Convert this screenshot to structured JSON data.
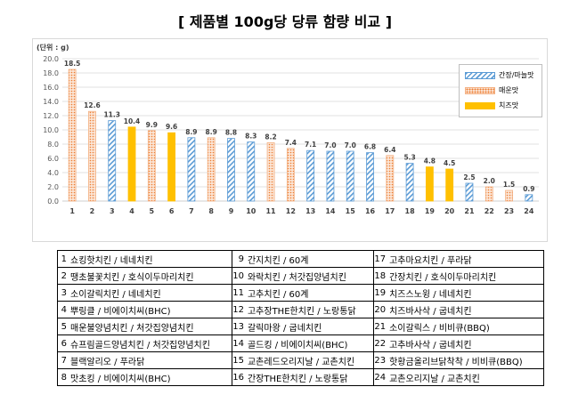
{
  "title": "[ 제품별 100g당 당류 함량 비교 ]",
  "chart_data": {
    "type": "bar",
    "unit_label": "(단위 : g)",
    "categories": [
      "1",
      "2",
      "3",
      "4",
      "5",
      "6",
      "7",
      "8",
      "9",
      "10",
      "11",
      "12",
      "13",
      "14",
      "15",
      "16",
      "17",
      "18",
      "19",
      "20",
      "21",
      "22",
      "23",
      "24"
    ],
    "values": [
      18.5,
      12.6,
      11.3,
      10.4,
      9.9,
      9.6,
      8.9,
      8.9,
      8.8,
      8.3,
      8.2,
      7.4,
      7.1,
      7.0,
      7.0,
      6.8,
      6.4,
      5.3,
      4.8,
      4.5,
      2.5,
      2.0,
      1.5,
      0.9
    ],
    "value_labels": [
      "18.5",
      "12.6",
      "11.3",
      "10.4",
      "9.9",
      "9.6",
      "8.9",
      "8.9",
      "8.8",
      "8.3",
      "8.2",
      "7.4",
      "7.1",
      "7.0",
      "7.0",
      "6.8",
      "6.4",
      "5.3",
      "4.8",
      "4.5",
      "2.5",
      "2.0",
      "1.5",
      "0.9"
    ],
    "groups": [
      "spicy",
      "spicy",
      "soy",
      "cheese",
      "spicy",
      "cheese",
      "soy",
      "spicy",
      "soy",
      "soy",
      "spicy",
      "spicy",
      "soy",
      "soy",
      "soy",
      "soy",
      "spicy",
      "soy",
      "cheese",
      "cheese",
      "soy",
      "spicy",
      "spicy",
      "soy"
    ],
    "ylim": [
      0,
      20
    ],
    "yticks": [
      "0.0",
      "2.0",
      "4.0",
      "6.0",
      "8.0",
      "10.0",
      "12.0",
      "14.0",
      "16.0",
      "18.0",
      "20.0"
    ],
    "grid": true,
    "legend_position": "top-right",
    "legend": [
      {
        "key": "soy",
        "label": "간장/마늘맛"
      },
      {
        "key": "spicy",
        "label": "매운맛"
      },
      {
        "key": "cheese",
        "label": "치즈맛"
      }
    ],
    "colors": {
      "soy": "#5b9bd5",
      "spicy": "#ed7d31",
      "spicy_fill": "#fbe5d6",
      "cheese": "#ffc000",
      "grid": "#d9d9d9",
      "axis_text": "#595959"
    }
  },
  "products": [
    {
      "num": "1",
      "name": "쇼킹핫치킨 / 네네치킨"
    },
    {
      "num": "2",
      "name": "땡초불꽃치킨 / 호식이두마리치킨"
    },
    {
      "num": "3",
      "name": "소이갈릭치킨 / 네네치킨"
    },
    {
      "num": "4",
      "name": "뿌링클 / 비에이치씨(BHC)"
    },
    {
      "num": "5",
      "name": "매운불양념치킨 / 처갓집양념치킨"
    },
    {
      "num": "6",
      "name": "슈프림골드양념치킨 / 처갓집양념치킨"
    },
    {
      "num": "7",
      "name": "블랙알리오 / 푸라닭"
    },
    {
      "num": "8",
      "name": "맛초킹 / 비에이치씨(BHC)"
    },
    {
      "num": "9",
      "name": "간지치킨 / 60계"
    },
    {
      "num": "10",
      "name": "와락치킨 / 처갓집양념치킨"
    },
    {
      "num": "11",
      "name": "고추치킨 / 60계"
    },
    {
      "num": "12",
      "name": "고추장THE한치킨 / 노랑통닭"
    },
    {
      "num": "13",
      "name": "갈릭마왕 / 굽네치킨"
    },
    {
      "num": "14",
      "name": "골드킹 / 비에이치씨(BHC)"
    },
    {
      "num": "15",
      "name": "교촌레드오리지날 / 교촌치킨"
    },
    {
      "num": "16",
      "name": "간장THE한치킨 / 노랑통닭"
    },
    {
      "num": "17",
      "name": "고추마요치킨 / 푸라닭"
    },
    {
      "num": "18",
      "name": "간장치킨 / 호식이두마리치킨"
    },
    {
      "num": "19",
      "name": "치즈스노윙 / 네네치킨"
    },
    {
      "num": "20",
      "name": "치즈바사삭 / 굽네치킨"
    },
    {
      "num": "21",
      "name": "소이갈릭스 / 비비큐(BBQ)"
    },
    {
      "num": "22",
      "name": "고추바사삭 / 굽네치킨"
    },
    {
      "num": "23",
      "name": "핫황금올리브닭착착 / 비비큐(BBQ)"
    },
    {
      "num": "24",
      "name": "교촌오리지날 / 교촌치킨"
    }
  ]
}
